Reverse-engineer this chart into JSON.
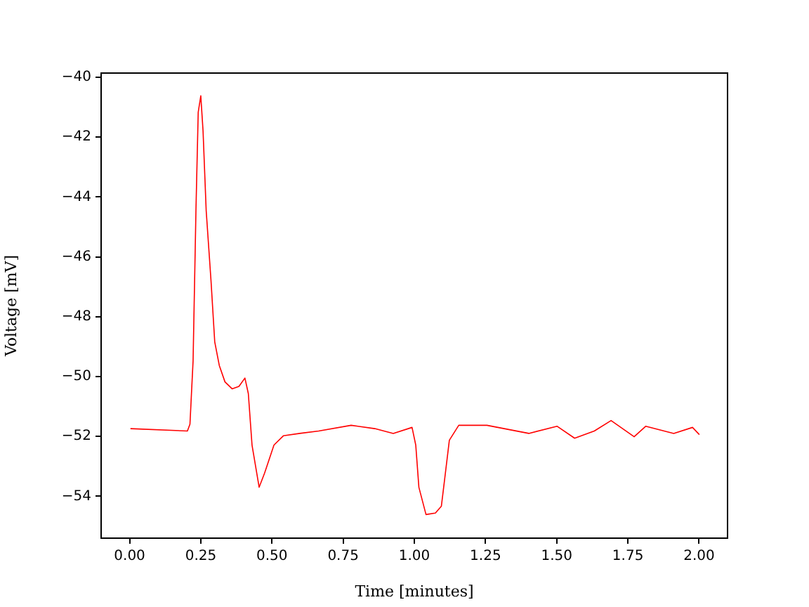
{
  "chart_data": {
    "type": "line",
    "xlabel": "Time [minutes]",
    "ylabel": "Voltage [mV]",
    "marker": "none",
    "line_style": "solid",
    "xlim": [
      -0.1,
      2.1
    ],
    "ylim": [
      -55.4,
      -39.86
    ],
    "xticks": [
      {
        "value": 0,
        "label": "0.00"
      },
      {
        "value": 0.25,
        "label": "0.25"
      },
      {
        "value": 0.5,
        "label": "0.50"
      },
      {
        "value": 0.75,
        "label": "0.75"
      },
      {
        "value": 1,
        "label": "1.00"
      },
      {
        "value": 1.25,
        "label": "1.25"
      },
      {
        "value": 1.5,
        "label": "1.50"
      },
      {
        "value": 1.75,
        "label": "1.75"
      },
      {
        "value": 2,
        "label": "2.00"
      }
    ],
    "yticks": [
      {
        "value": -54,
        "label": "−54"
      },
      {
        "value": -52,
        "label": "−52"
      },
      {
        "value": -50,
        "label": "−50"
      },
      {
        "value": -48,
        "label": "−48"
      },
      {
        "value": -46,
        "label": "−46"
      },
      {
        "value": -44,
        "label": "−44"
      },
      {
        "value": -42,
        "label": "−42"
      },
      {
        "value": -40,
        "label": "−40"
      }
    ],
    "series": [
      {
        "color": "#ff0000",
        "x": [
          0.003,
          0.203,
          0.212,
          0.223,
          0.233,
          0.241,
          0.25,
          0.258,
          0.269,
          0.286,
          0.299,
          0.315,
          0.335,
          0.36,
          0.384,
          0.405,
          0.417,
          0.43,
          0.455,
          0.474,
          0.507,
          0.54,
          0.598,
          0.664,
          0.778,
          0.861,
          0.926,
          0.992,
          1.005,
          1.016,
          1.041,
          1.074,
          1.095,
          1.107,
          1.123,
          1.156,
          1.255,
          1.402,
          1.501,
          1.563,
          1.632,
          1.691,
          1.772,
          1.813,
          1.911,
          1.977,
          2.001
        ],
        "values": [
          -51.74,
          -51.82,
          -51.59,
          -49.47,
          -44.46,
          -41.17,
          -40.62,
          -41.8,
          -44.46,
          -46.81,
          -48.84,
          -49.63,
          -50.18,
          -50.41,
          -50.33,
          -50.05,
          -50.57,
          -52.29,
          -53.7,
          -53.23,
          -52.29,
          -51.98,
          -51.9,
          -51.82,
          -51.63,
          -51.74,
          -51.9,
          -51.7,
          -52.29,
          -53.7,
          -54.61,
          -54.56,
          -54.33,
          -53.39,
          -52.13,
          -51.63,
          -51.63,
          -51.9,
          -51.66,
          -52.06,
          -51.82,
          -51.47,
          -52.01,
          -51.66,
          -51.9,
          -51.7,
          -51.94
        ]
      }
    ]
  }
}
